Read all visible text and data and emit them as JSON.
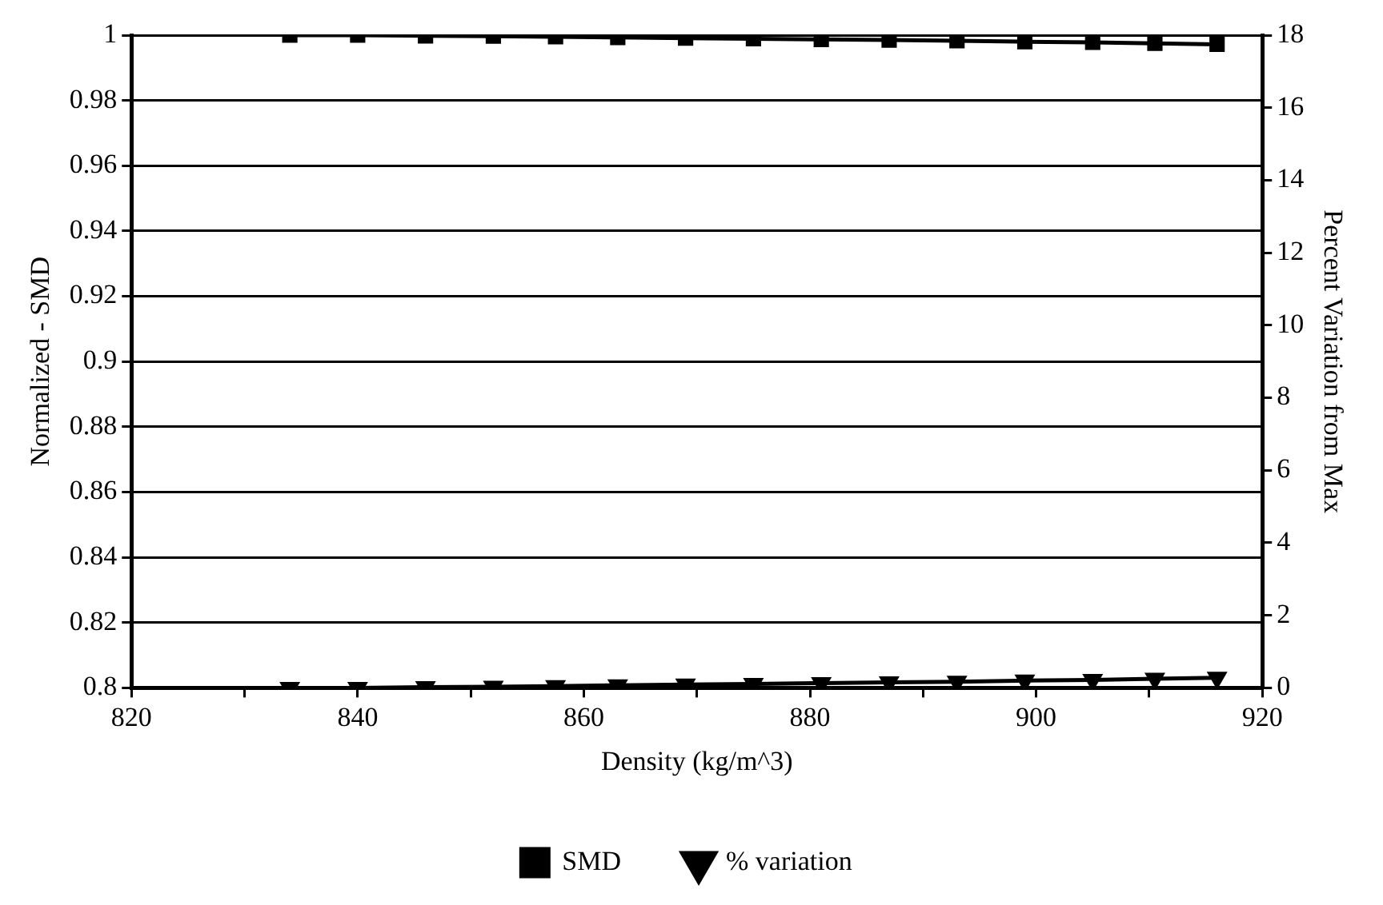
{
  "chart_data": {
    "type": "line",
    "xlabel": "Density (kg/m^3)",
    "ylabel": "Normalized - SMD",
    "y2label": "Percent Variation from Max",
    "x": [
      834,
      840,
      846,
      852,
      857.5,
      863,
      869,
      875,
      881,
      887,
      893,
      899,
      905,
      910.5,
      916
    ],
    "series": [
      {
        "name": "SMD",
        "color": "#000000",
        "marker": "square",
        "values": [
          1.0,
          1.0,
          0.9998,
          0.9997,
          0.9995,
          0.9993,
          0.9991,
          0.9989,
          0.9987,
          0.9985,
          0.9983,
          0.998,
          0.9978,
          0.9975,
          0.9972
        ]
      },
      {
        "name": "% variation",
        "color": "#000000",
        "marker": "triangle",
        "axis": "y2",
        "values": [
          0,
          0,
          0.02,
          0.03,
          0.05,
          0.07,
          0.09,
          0.11,
          0.13,
          0.15,
          0.17,
          0.2,
          0.22,
          0.25,
          0.28
        ]
      }
    ],
    "xlim": [
      820,
      920
    ],
    "xticks": [
      820,
      {
        "value": 830,
        "label": null
      },
      840,
      {
        "value": 850,
        "label": null
      },
      860,
      {
        "value": 870,
        "label": null
      },
      880,
      {
        "value": 890,
        "label": null
      },
      900,
      {
        "value": 910,
        "label": null
      },
      920
    ],
    "ylim": [
      0.8,
      1
    ],
    "yticks": [
      0.8,
      0.82,
      0.84,
      0.86,
      0.88,
      0.9,
      0.92,
      0.94,
      0.96,
      0.98,
      {
        "value": 1,
        "label": "1"
      }
    ],
    "y2lim": [
      0,
      18
    ],
    "y2ticks": [
      0,
      2,
      4,
      6,
      8,
      10,
      12,
      14,
      16,
      18
    ],
    "grid": "y",
    "legend": "bottom",
    "line_style": "solid"
  }
}
